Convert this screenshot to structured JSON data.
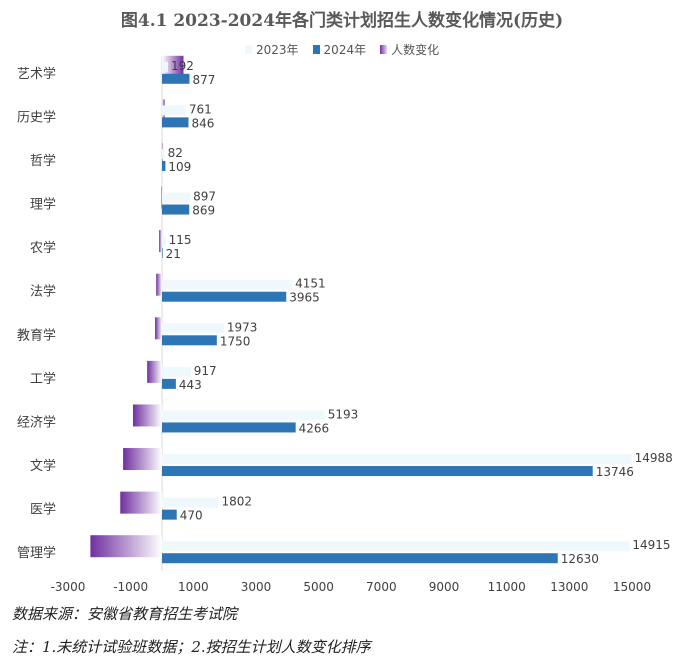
{
  "chart_data": {
    "type": "bar",
    "title": "图4.1 2023-2024年各门类计划招生人数变化情况(历史)",
    "categories": [
      "艺术学",
      "历史学",
      "哲学",
      "理学",
      "农学",
      "法学",
      "教育学",
      "工学",
      "经济学",
      "文学",
      "医学",
      "管理学"
    ],
    "series": [
      {
        "name": "2023年",
        "values": [
          192,
          761,
          82,
          897,
          115,
          4151,
          1973,
          917,
          5193,
          14988,
          1802,
          14915
        ],
        "color": "#eef8fd"
      },
      {
        "name": "2024年",
        "values": [
          877,
          846,
          109,
          869,
          21,
          3965,
          1750,
          443,
          4266,
          13746,
          470,
          12630
        ],
        "color": "#2e75b6"
      },
      {
        "name": "人数变化",
        "values": [
          685,
          85,
          27,
          -28,
          -94,
          -186,
          -223,
          -474,
          -927,
          -1242,
          -1332,
          -2285
        ],
        "color": "#7030a0"
      }
    ],
    "xticks": [
      -3000,
      -1000,
      1000,
      3000,
      5000,
      7000,
      9000,
      11000,
      13000,
      15000
    ],
    "xlim": [
      -3000,
      15000
    ],
    "grid": false,
    "legend_position": "top"
  },
  "footnotes": {
    "source": "数据来源：安徽省教育招生考试院",
    "note": "注：1.未统计试验班数据；2.按招生计划人数变化排序"
  }
}
